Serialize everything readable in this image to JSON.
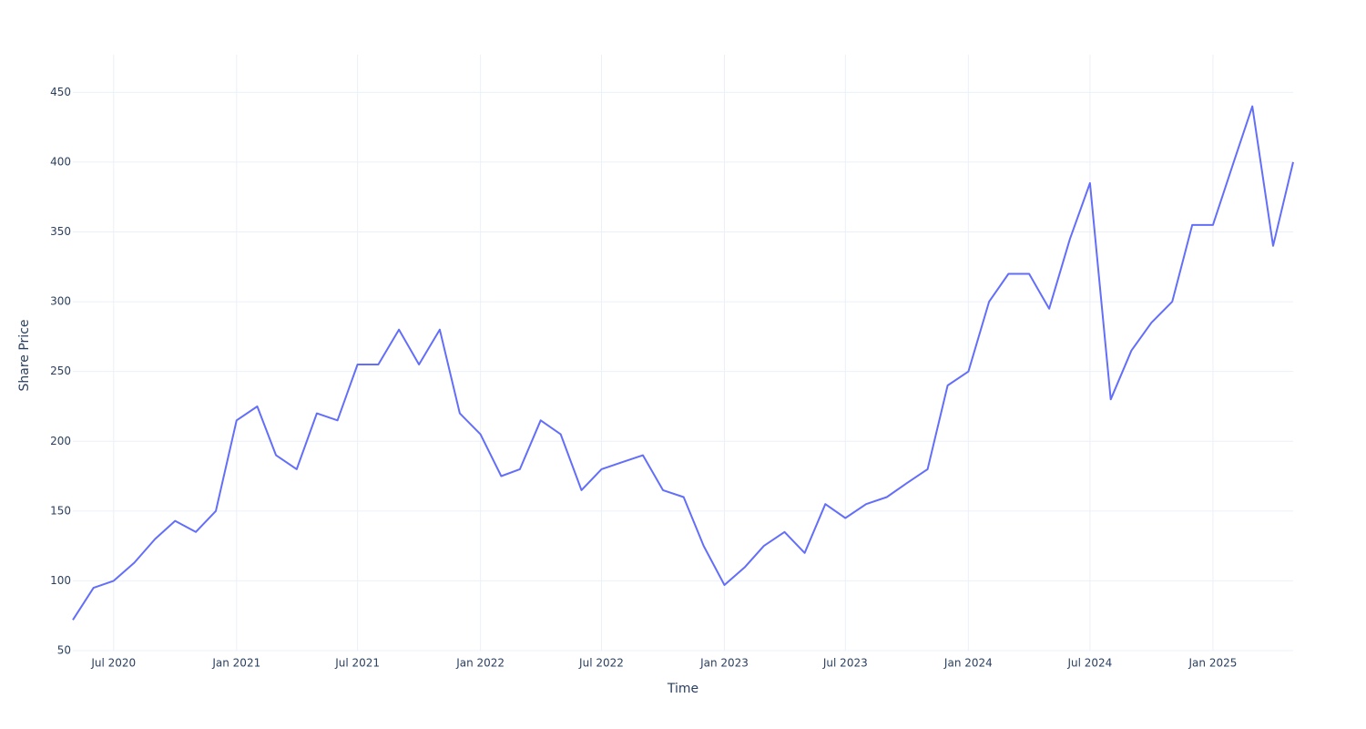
{
  "chart_data": {
    "type": "line",
    "x_label": "Time",
    "y_label": "Share Price",
    "x": [
      "2020-05",
      "2020-06",
      "2020-07",
      "2020-08",
      "2020-09",
      "2020-10",
      "2020-11",
      "2020-12",
      "2021-01",
      "2021-02",
      "2021-03",
      "2021-04",
      "2021-05",
      "2021-06",
      "2021-07",
      "2021-08",
      "2021-09",
      "2021-10",
      "2021-11",
      "2021-12",
      "2022-01",
      "2022-02",
      "2022-03",
      "2022-04",
      "2022-05",
      "2022-06",
      "2022-07",
      "2022-08",
      "2022-09",
      "2022-10",
      "2022-11",
      "2022-12",
      "2023-01",
      "2023-02",
      "2023-03",
      "2023-04",
      "2023-05",
      "2023-06",
      "2023-07",
      "2023-08",
      "2023-09",
      "2023-10",
      "2023-11",
      "2023-12",
      "2024-01",
      "2024-02",
      "2024-03",
      "2024-04",
      "2024-05",
      "2024-06",
      "2024-07",
      "2024-08",
      "2024-09",
      "2024-10",
      "2024-11",
      "2024-12",
      "2025-01",
      "2025-02",
      "2025-03",
      "2025-04",
      "2025-05"
    ],
    "series": [
      {
        "name": "Share Price",
        "color": "#636efa",
        "values": [
          72,
          95,
          100,
          113,
          130,
          143,
          135,
          150,
          215,
          225,
          190,
          180,
          220,
          215,
          255,
          255,
          280,
          255,
          280,
          220,
          205,
          175,
          180,
          215,
          205,
          165,
          180,
          185,
          190,
          165,
          160,
          125,
          97,
          110,
          125,
          135,
          120,
          155,
          145,
          155,
          160,
          170,
          180,
          240,
          250,
          300,
          320,
          320,
          295,
          345,
          385,
          230,
          265,
          285,
          300,
          355,
          355,
          400,
          440,
          340,
          400
        ]
      }
    ],
    "xlim": [
      "2020-05",
      "2025-05"
    ],
    "xticks": [
      {
        "value": "2020-07",
        "label": "Jul 2020"
      },
      {
        "value": "2021-01",
        "label": "Jan 2021"
      },
      {
        "value": "2021-07",
        "label": "Jul 2021"
      },
      {
        "value": "2022-01",
        "label": "Jan 2022"
      },
      {
        "value": "2022-07",
        "label": "Jul 2022"
      },
      {
        "value": "2023-01",
        "label": "Jan 2023"
      },
      {
        "value": "2023-07",
        "label": "Jul 2023"
      },
      {
        "value": "2024-01",
        "label": "Jan 2024"
      },
      {
        "value": "2024-07",
        "label": "Jul 2024"
      },
      {
        "value": "2025-01",
        "label": "Jan 2025"
      }
    ],
    "ylim": [
      50,
      477
    ],
    "yticks": [
      50,
      100,
      150,
      200,
      250,
      300,
      350,
      400,
      450
    ],
    "grid": true
  }
}
